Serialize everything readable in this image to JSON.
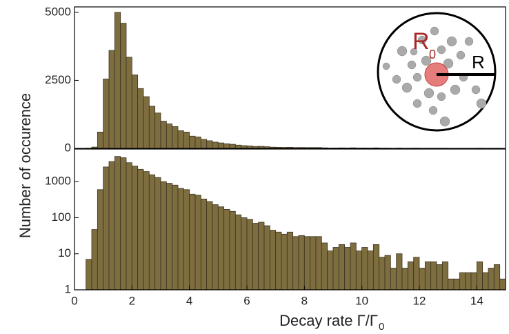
{
  "shared": {
    "ylabel": "Number of occurence",
    "xlabel": "Decay rate Γ/Γ",
    "xlabel_subscript": "0",
    "inset": {
      "inner_label": "R",
      "inner_subscript": "0",
      "outer_label": "R"
    }
  },
  "chart_data": [
    {
      "type": "histogram",
      "color": "#7d6d3f",
      "log_y": false,
      "bins": [
        0.4,
        0.6,
        0.8,
        1.0,
        1.2,
        1.4,
        1.6,
        1.8,
        2.0,
        2.2,
        2.4,
        2.6,
        2.8,
        3.0,
        3.2,
        3.4,
        3.6,
        3.8,
        4.0,
        4.2,
        4.4,
        4.6,
        4.8,
        5.0,
        5.2,
        5.4,
        5.6,
        5.8,
        6.0,
        6.2,
        6.4,
        6.6,
        6.8,
        7.0,
        7.2,
        7.4,
        7.6,
        7.8,
        8.0,
        8.2,
        8.4,
        8.6,
        8.8,
        9.0,
        9.2,
        9.4,
        9.6,
        9.8,
        10.0,
        10.2,
        10.4,
        10.6,
        10.8,
        11.0,
        11.2,
        11.4,
        11.6,
        11.8,
        12.0,
        12.2,
        12.4,
        12.6,
        12.8,
        13.0,
        13.2,
        13.4,
        13.6,
        13.8,
        14.0,
        14.2,
        14.4,
        14.6,
        14.8,
        15.0
      ],
      "values": [
        7,
        47,
        600,
        2550,
        3600,
        5000,
        4600,
        3350,
        2700,
        2200,
        1900,
        1550,
        1300,
        1000,
        900,
        800,
        650,
        600,
        450,
        420,
        330,
        280,
        230,
        200,
        170,
        150,
        120,
        100,
        90,
        70,
        75,
        60,
        45,
        40,
        35,
        40,
        30,
        32,
        30,
        30,
        30,
        20,
        12,
        15,
        18,
        15,
        20,
        12,
        15,
        12,
        18,
        8,
        9,
        4,
        10,
        4,
        6,
        8,
        4,
        6,
        6,
        5,
        6,
        2,
        2,
        3,
        3,
        3,
        6,
        3,
        4,
        5,
        2
      ],
      "xlim": [
        0,
        15
      ],
      "ylim": [
        0,
        5200
      ],
      "yticks": [
        0,
        2500,
        5000
      ]
    },
    {
      "type": "histogram",
      "color": "#7d6d3f",
      "log_y": true,
      "bins": [
        0.4,
        0.6,
        0.8,
        1.0,
        1.2,
        1.4,
        1.6,
        1.8,
        2.0,
        2.2,
        2.4,
        2.6,
        2.8,
        3.0,
        3.2,
        3.4,
        3.6,
        3.8,
        4.0,
        4.2,
        4.4,
        4.6,
        4.8,
        5.0,
        5.2,
        5.4,
        5.6,
        5.8,
        6.0,
        6.2,
        6.4,
        6.6,
        6.8,
        7.0,
        7.2,
        7.4,
        7.6,
        7.8,
        8.0,
        8.2,
        8.4,
        8.6,
        8.8,
        9.0,
        9.2,
        9.4,
        9.6,
        9.8,
        10.0,
        10.2,
        10.4,
        10.6,
        10.8,
        11.0,
        11.2,
        11.4,
        11.6,
        11.8,
        12.0,
        12.2,
        12.4,
        12.6,
        12.8,
        13.0,
        13.2,
        13.4,
        13.6,
        13.8,
        14.0,
        14.2,
        14.4,
        14.6,
        14.8,
        15.0
      ],
      "values": [
        7,
        47,
        600,
        2550,
        3600,
        5000,
        4600,
        3350,
        2700,
        2200,
        1900,
        1550,
        1300,
        1000,
        900,
        800,
        650,
        600,
        450,
        420,
        330,
        280,
        230,
        200,
        170,
        150,
        120,
        100,
        90,
        70,
        75,
        60,
        45,
        40,
        35,
        40,
        30,
        32,
        30,
        30,
        30,
        20,
        12,
        15,
        18,
        15,
        20,
        12,
        15,
        12,
        18,
        8,
        9,
        4,
        10,
        4,
        6,
        8,
        4,
        6,
        6,
        5,
        6,
        2,
        2,
        3,
        3,
        3,
        6,
        3,
        4,
        5,
        2
      ],
      "xlim": [
        0,
        15
      ],
      "xticks": [
        0,
        2,
        4,
        6,
        8,
        10,
        12,
        14
      ],
      "ylim": [
        1,
        8000
      ],
      "yticks": [
        1,
        10,
        100,
        1000
      ]
    }
  ]
}
